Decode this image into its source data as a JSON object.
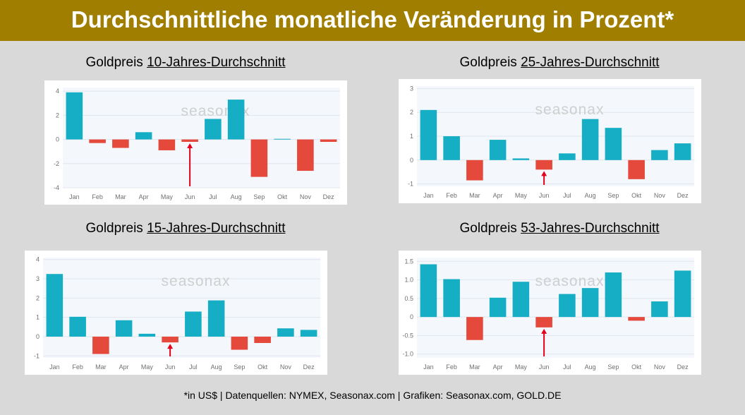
{
  "header": {
    "title": "Durchschnittliche monatliche Veränderung in Prozent*"
  },
  "footer": {
    "text": "*in US$ | Datenquellen: NYMEX, Seasonax.com | Grafiken: Seasonax.com, GOLD.DE"
  },
  "colors": {
    "positive": "#16aec4",
    "negative": "#e4493c",
    "highlight_arrow": "#e4001b",
    "banner": "#a07e00"
  },
  "watermark": "seasonax",
  "panels": [
    {
      "title_prefix": "Goldpreis ",
      "title_underlined": "10-Jahres-Durchschnitt"
    },
    {
      "title_prefix": "Goldpreis ",
      "title_underlined": "25-Jahres-Durchschnitt"
    },
    {
      "title_prefix": "Goldpreis ",
      "title_underlined": "15-Jahres-Durchschnitt"
    },
    {
      "title_prefix": "Goldpreis ",
      "title_underlined": "53-Jahres-Durchschnitt"
    }
  ],
  "chart_data": [
    {
      "type": "bar",
      "categories": [
        "Jan",
        "Feb",
        "Mar",
        "Apr",
        "May",
        "Jun",
        "Jul",
        "Aug",
        "Sep",
        "Okt",
        "Nov",
        "Dez"
      ],
      "values": [
        3.9,
        -0.3,
        -0.7,
        0.6,
        -0.9,
        -0.2,
        1.7,
        3.3,
        -3.1,
        0.05,
        -2.6,
        -0.2
      ],
      "yticks": [
        4,
        2,
        0,
        -2,
        -4
      ],
      "ytick_labels": [
        "4",
        "2",
        "0",
        "-2",
        "-4"
      ],
      "ylim": [
        -4,
        4.3
      ],
      "highlight": "Jun",
      "grid": true
    },
    {
      "type": "bar",
      "categories": [
        "Jan",
        "Feb",
        "Mar",
        "Apr",
        "May",
        "Jun",
        "Jul",
        "Aug",
        "Sep",
        "Okt",
        "Nov",
        "Dez"
      ],
      "values": [
        2.1,
        1.0,
        -0.85,
        0.85,
        0.07,
        -0.4,
        0.28,
        1.72,
        1.35,
        -0.8,
        0.42,
        0.7
      ],
      "yticks": [
        3,
        2,
        1,
        0,
        -1
      ],
      "ytick_labels": [
        "3",
        "2",
        "1",
        "0",
        "-1"
      ],
      "ylim": [
        -1.1,
        3.1
      ],
      "highlight": "Jun",
      "grid": true
    },
    {
      "type": "bar",
      "categories": [
        "Jan",
        "Feb",
        "Mar",
        "Apr",
        "May",
        "Jun",
        "Jul",
        "Aug",
        "Sep",
        "Okt",
        "Nov",
        "Dez"
      ],
      "values": [
        3.25,
        1.03,
        -0.9,
        0.85,
        0.15,
        -0.3,
        1.3,
        1.88,
        -0.68,
        -0.33,
        0.43,
        0.35
      ],
      "yticks": [
        4,
        3,
        2,
        1,
        0,
        -1
      ],
      "ytick_labels": [
        "4",
        "3",
        "2",
        "1",
        "0",
        "-1"
      ],
      "ylim": [
        -1.1,
        4.1
      ],
      "highlight": "Jun",
      "grid": true
    },
    {
      "type": "bar",
      "categories": [
        "Jan",
        "Feb",
        "Mar",
        "Apr",
        "May",
        "Jun",
        "Jul",
        "Aug",
        "Sep",
        "Okt",
        "Nov",
        "Dez"
      ],
      "values": [
        1.42,
        1.02,
        -0.62,
        0.52,
        0.95,
        -0.28,
        0.62,
        0.78,
        1.2,
        -0.1,
        0.42,
        1.25
      ],
      "yticks": [
        1.5,
        1.0,
        0.5,
        0,
        -0.5,
        -1.0
      ],
      "ytick_labels": [
        "1.5",
        "1.0",
        "0.5",
        "0",
        "-0.5",
        "-1.0"
      ],
      "ylim": [
        -1.1,
        1.6
      ],
      "highlight": "Jun",
      "grid": true
    }
  ]
}
